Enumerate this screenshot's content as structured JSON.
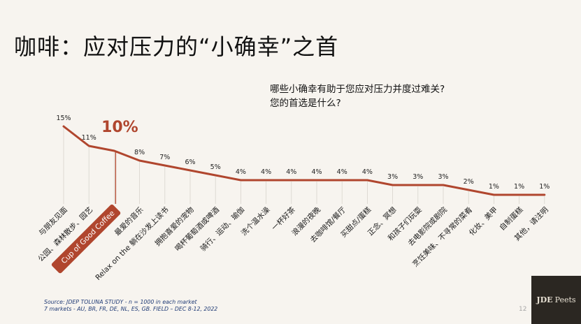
{
  "slide": {
    "title": "咖啡：应对压力的“小确幸”之首",
    "question_line1": "哪些小确幸有助于您应对压力并度过难关?",
    "question_line2": "您的首选是什么?",
    "source_line1": "Source: JDEP  TOLUNA STUDY - n = 1000 in each market",
    "source_line2": "7 markets - AU, BR, FR, DE, NL, ES, GB.       FIELD – DEC 8-12, 2022",
    "page_number": "12",
    "logo_text": "JDE",
    "logo_sub": "Peets"
  },
  "chart_data": {
    "type": "line",
    "categories": [
      "与朋友见面",
      "公园、森林散步、园艺",
      "Cup of Good Coffee",
      "最爱的音乐",
      "Relax on the 躺在沙发上读书",
      "拥抱喜爱的宠物",
      "喝杯葡萄酒或啤酒",
      "骑行、运动、瑜伽",
      "洗个温水澡",
      "一杯好茶",
      "浪漫的夜晚",
      "去咖啡馆/餐厅",
      "买甜点/蛋糕",
      "正念、冥想",
      "和孩子们玩耍",
      "去电影院或剧院",
      "烹饪美味、不寻常的菜肴",
      "化妆、美甲",
      "自制蛋糕",
      "其他，请注明"
    ],
    "values": [
      15,
      11,
      10,
      8,
      7,
      6,
      5,
      4,
      4,
      4,
      4,
      4,
      4,
      3,
      3,
      3,
      2,
      1,
      1,
      1
    ],
    "value_labels": [
      "15%",
      "11%",
      "10%",
      "8%",
      "7%",
      "6%",
      "5%",
      "4%",
      "4%",
      "4%",
      "4%",
      "4%",
      "4%",
      "3%",
      "3%",
      "3%",
      "2%",
      "1%",
      "1%",
      "1%"
    ],
    "highlight_index": 2,
    "ylim": [
      0,
      16
    ],
    "colors": {
      "line": "#b0462e",
      "highlight": "#b0462e",
      "highlight_text": "#ffffff",
      "label": "#222222",
      "dropline": "#d8d4cc"
    }
  }
}
